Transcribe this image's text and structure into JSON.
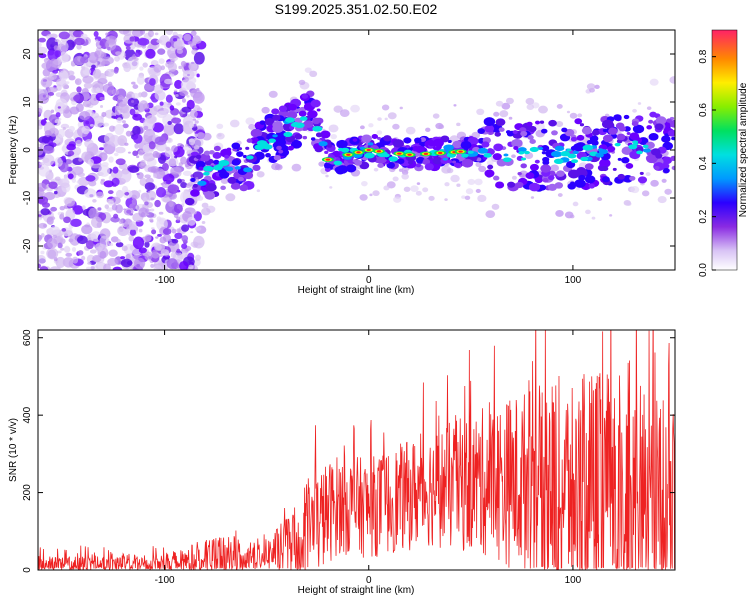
{
  "title": "S199.2025.351.02.50.E02",
  "chart_data": [
    {
      "type": "heatmap",
      "xlabel": "Height of straight line (km)",
      "ylabel": "Frequency (Hz)",
      "xlim": [
        -162,
        150
      ],
      "ylim": [
        -25,
        25
      ],
      "xticks": [
        -100,
        0,
        100
      ],
      "yticks": [
        -20,
        -10,
        0,
        10,
        20
      ],
      "colorbar": {
        "label": "Normalized spectral amplitude",
        "range": [
          0.0,
          0.9
        ],
        "ticks": [
          0.0,
          0.2,
          0.4,
          0.6,
          0.8
        ]
      },
      "ridge": {
        "description_points": [
          [
            -85,
            -6
          ],
          [
            -70,
            -4
          ],
          [
            -60,
            -3
          ],
          [
            -50,
            2
          ],
          [
            -38,
            5
          ],
          [
            -28,
            8
          ],
          [
            -20,
            -2
          ],
          [
            -10,
            -1
          ],
          [
            0,
            0
          ],
          [
            20,
            -1
          ],
          [
            40,
            -0.5
          ],
          [
            55,
            0
          ],
          [
            70,
            -1
          ],
          [
            100,
            -1
          ],
          [
            120,
            0
          ],
          [
            140,
            1
          ]
        ]
      },
      "colors": {
        "low": "#c9a8f0",
        "mid": "#7a1fff",
        "high": "#ff2020"
      }
    },
    {
      "type": "line",
      "xlabel": "Height of straight line (km)",
      "ylabel": "SNR (10 * v/v)",
      "xlim": [
        -162,
        150
      ],
      "ylim": [
        0,
        620
      ],
      "xticks": [
        -100,
        0,
        100
      ],
      "yticks": [
        0,
        200,
        400,
        600
      ],
      "color": "#ee2222",
      "envelope": [
        {
          "x": -162,
          "base": 12,
          "amp": 25
        },
        {
          "x": -100,
          "base": 15,
          "amp": 30
        },
        {
          "x": -70,
          "base": 30,
          "amp": 60
        },
        {
          "x": -50,
          "base": 40,
          "amp": 40
        },
        {
          "x": -35,
          "base": 70,
          "amp": 100
        },
        {
          "x": -28,
          "base": 110,
          "amp": 140
        },
        {
          "x": -15,
          "base": 170,
          "amp": 130
        },
        {
          "x": 0,
          "base": 160,
          "amp": 130
        },
        {
          "x": 30,
          "base": 210,
          "amp": 150
        },
        {
          "x": 60,
          "base": 230,
          "amp": 200
        },
        {
          "x": 90,
          "base": 220,
          "amp": 280
        },
        {
          "x": 120,
          "base": 200,
          "amp": 320
        },
        {
          "x": 150,
          "base": 190,
          "amp": 250
        }
      ]
    }
  ]
}
